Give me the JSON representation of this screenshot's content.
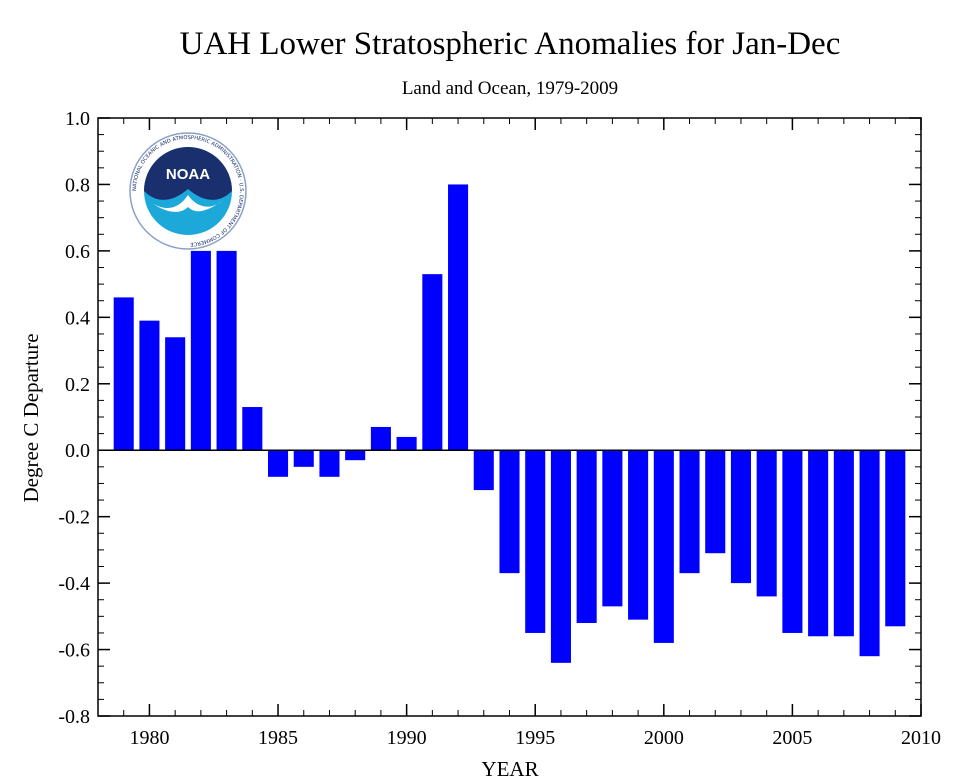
{
  "chart_data": {
    "type": "bar",
    "title": "UAH Lower Stratospheric Anomalies for Jan-Dec",
    "subtitle": "Land and Ocean, 1979-2009",
    "xlabel": "YEAR",
    "ylabel": "Degree C Departure",
    "xlim": [
      1978,
      2010
    ],
    "ylim": [
      -0.8,
      1.0
    ],
    "x_ticks": [
      "1980",
      "1985",
      "1990",
      "1995",
      "2000",
      "2005",
      "2010"
    ],
    "y_ticks": [
      "1.0",
      "0.8",
      "0.6",
      "0.4",
      "0.2",
      "0.0",
      "-0.2",
      "-0.4",
      "-0.6",
      "-0.8"
    ],
    "bar_color": "#0000ff",
    "grid": false,
    "x": [
      1979,
      1980,
      1981,
      1982,
      1983,
      1984,
      1985,
      1986,
      1987,
      1988,
      1989,
      1990,
      1991,
      1992,
      1993,
      1994,
      1995,
      1996,
      1997,
      1998,
      1999,
      2000,
      2001,
      2002,
      2003,
      2004,
      2005,
      2006,
      2007,
      2008,
      2009
    ],
    "values": [
      0.46,
      0.39,
      0.34,
      0.6,
      0.6,
      0.13,
      -0.08,
      -0.05,
      -0.08,
      -0.03,
      0.07,
      0.04,
      0.53,
      0.8,
      -0.12,
      -0.37,
      -0.55,
      -0.64,
      -0.52,
      -0.47,
      -0.51,
      -0.58,
      -0.37,
      -0.31,
      -0.4,
      -0.44,
      -0.55,
      -0.56,
      -0.56,
      -0.62,
      -0.53
    ]
  },
  "logo": {
    "text": "NOAA",
    "ring_text": "NATIONAL OCEANIC AND ATMOSPHERIC ADMINISTRATION · U.S. DEPARTMENT OF COMMERCE"
  }
}
